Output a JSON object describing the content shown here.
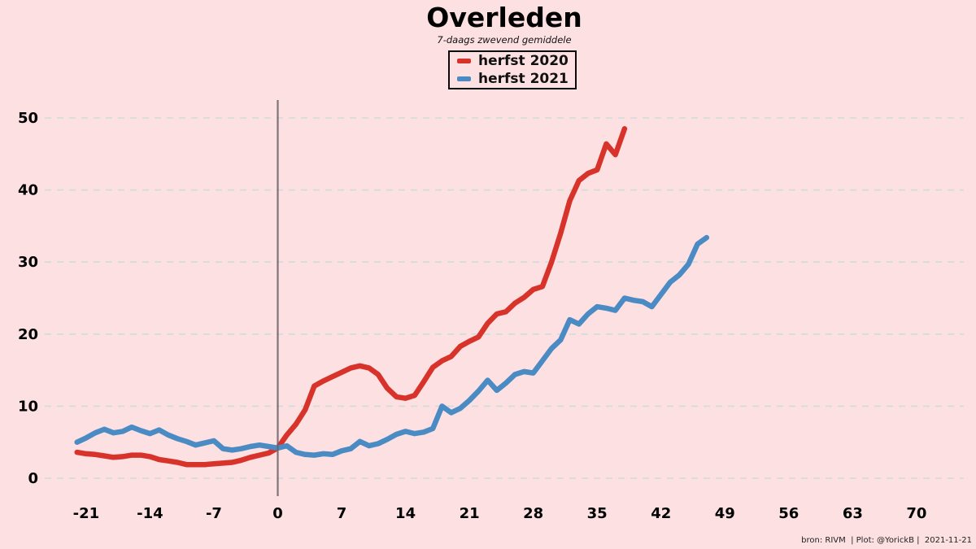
{
  "header": {
    "title": "Overleden",
    "subtitle": "7-daags zwevend gemiddele"
  },
  "legend": {
    "items": [
      {
        "label": "herfst 2020",
        "color": "#d7332b"
      },
      {
        "label": "herfst 2021",
        "color": "#4a8bc4"
      }
    ]
  },
  "footer": {
    "credit": "bron: RIVM  | Plot: @YorickB |  2021-11-21"
  },
  "colors": {
    "background": "#fde0e2",
    "gridline": "#cfdcd8",
    "zero_day_line": "#6c6065",
    "herfst_2020": "#d7332b",
    "herfst_2021": "#4a8bc4"
  },
  "chart_data": {
    "type": "line",
    "title": "Overleden",
    "subtitle": "7-daags zwevend gemiddele",
    "xlabel": "",
    "ylabel": "",
    "x_ticks": [
      -21,
      -14,
      -7,
      0,
      7,
      14,
      21,
      28,
      35,
      42,
      49,
      56,
      63,
      70
    ],
    "y_ticks": [
      0,
      10,
      20,
      30,
      40,
      50
    ],
    "xlim": [
      -25.5,
      75
    ],
    "ylim": [
      0,
      52
    ],
    "grid": "horizontal-dashed",
    "vline_x": 0,
    "legend_position": "top-center",
    "series": [
      {
        "name": "herfst 2020",
        "color": "#d7332b",
        "points": [
          [
            -22,
            3.6
          ],
          [
            -21,
            3.4
          ],
          [
            -20,
            3.3
          ],
          [
            -19,
            3.1
          ],
          [
            -18,
            2.9
          ],
          [
            -17,
            3.0
          ],
          [
            -16,
            3.2
          ],
          [
            -15,
            3.2
          ],
          [
            -14,
            3.0
          ],
          [
            -13,
            2.6
          ],
          [
            -12,
            2.4
          ],
          [
            -11,
            2.2
          ],
          [
            -10,
            1.9
          ],
          [
            -9,
            1.9
          ],
          [
            -8,
            1.9
          ],
          [
            -7,
            2.0
          ],
          [
            -6,
            2.1
          ],
          [
            -5,
            2.2
          ],
          [
            -4,
            2.5
          ],
          [
            -3,
            2.9
          ],
          [
            -2,
            3.2
          ],
          [
            -1,
            3.5
          ],
          [
            0,
            4.2
          ],
          [
            1,
            6.0
          ],
          [
            2,
            7.5
          ],
          [
            3,
            9.5
          ],
          [
            4,
            12.8
          ],
          [
            5,
            13.5
          ],
          [
            6,
            14.1
          ],
          [
            7,
            14.7
          ],
          [
            8,
            15.3
          ],
          [
            9,
            15.6
          ],
          [
            10,
            15.3
          ],
          [
            11,
            14.4
          ],
          [
            12,
            12.5
          ],
          [
            13,
            11.3
          ],
          [
            14,
            11.1
          ],
          [
            15,
            11.5
          ],
          [
            16,
            13.4
          ],
          [
            17,
            15.4
          ],
          [
            18,
            16.3
          ],
          [
            19,
            16.9
          ],
          [
            20,
            18.3
          ],
          [
            21,
            19.0
          ],
          [
            22,
            19.6
          ],
          [
            23,
            21.5
          ],
          [
            24,
            22.8
          ],
          [
            25,
            23.1
          ],
          [
            26,
            24.3
          ],
          [
            27,
            25.1
          ],
          [
            28,
            26.2
          ],
          [
            29,
            26.6
          ],
          [
            30,
            30.0
          ],
          [
            31,
            34.0
          ],
          [
            32,
            38.5
          ],
          [
            33,
            41.3
          ],
          [
            34,
            42.3
          ],
          [
            35,
            42.8
          ],
          [
            36,
            46.4
          ],
          [
            37,
            44.9
          ],
          [
            38,
            48.5
          ]
        ]
      },
      {
        "name": "herfst 2021",
        "color": "#4a8bc4",
        "points": [
          [
            -22,
            5.0
          ],
          [
            -21,
            5.6
          ],
          [
            -20,
            6.3
          ],
          [
            -19,
            6.8
          ],
          [
            -18,
            6.3
          ],
          [
            -17,
            6.5
          ],
          [
            -16,
            7.1
          ],
          [
            -15,
            6.6
          ],
          [
            -14,
            6.2
          ],
          [
            -13,
            6.7
          ],
          [
            -12,
            6.0
          ],
          [
            -11,
            5.5
          ],
          [
            -10,
            5.1
          ],
          [
            -9,
            4.6
          ],
          [
            -8,
            4.9
          ],
          [
            -7,
            5.2
          ],
          [
            -6,
            4.1
          ],
          [
            -5,
            3.9
          ],
          [
            -4,
            4.1
          ],
          [
            -3,
            4.4
          ],
          [
            -2,
            4.6
          ],
          [
            -1,
            4.4
          ],
          [
            0,
            4.2
          ],
          [
            1,
            4.5
          ],
          [
            2,
            3.6
          ],
          [
            3,
            3.3
          ],
          [
            4,
            3.2
          ],
          [
            5,
            3.4
          ],
          [
            6,
            3.3
          ],
          [
            7,
            3.8
          ],
          [
            8,
            4.1
          ],
          [
            9,
            5.1
          ],
          [
            10,
            4.5
          ],
          [
            11,
            4.8
          ],
          [
            12,
            5.4
          ],
          [
            13,
            6.1
          ],
          [
            14,
            6.5
          ],
          [
            15,
            6.2
          ],
          [
            16,
            6.4
          ],
          [
            17,
            6.9
          ],
          [
            18,
            10.0
          ],
          [
            19,
            9.1
          ],
          [
            20,
            9.7
          ],
          [
            21,
            10.8
          ],
          [
            22,
            12.1
          ],
          [
            23,
            13.6
          ],
          [
            24,
            12.2
          ],
          [
            25,
            13.2
          ],
          [
            26,
            14.4
          ],
          [
            27,
            14.8
          ],
          [
            28,
            14.6
          ],
          [
            29,
            16.3
          ],
          [
            30,
            18.0
          ],
          [
            31,
            19.2
          ],
          [
            32,
            22.0
          ],
          [
            33,
            21.4
          ],
          [
            34,
            22.8
          ],
          [
            35,
            23.8
          ],
          [
            36,
            23.6
          ],
          [
            37,
            23.3
          ],
          [
            38,
            25.0
          ],
          [
            39,
            24.7
          ],
          [
            40,
            24.5
          ],
          [
            41,
            23.8
          ],
          [
            42,
            25.5
          ],
          [
            43,
            27.2
          ],
          [
            44,
            28.2
          ],
          [
            45,
            29.7
          ],
          [
            46,
            32.5
          ],
          [
            47,
            33.4
          ]
        ]
      }
    ]
  }
}
